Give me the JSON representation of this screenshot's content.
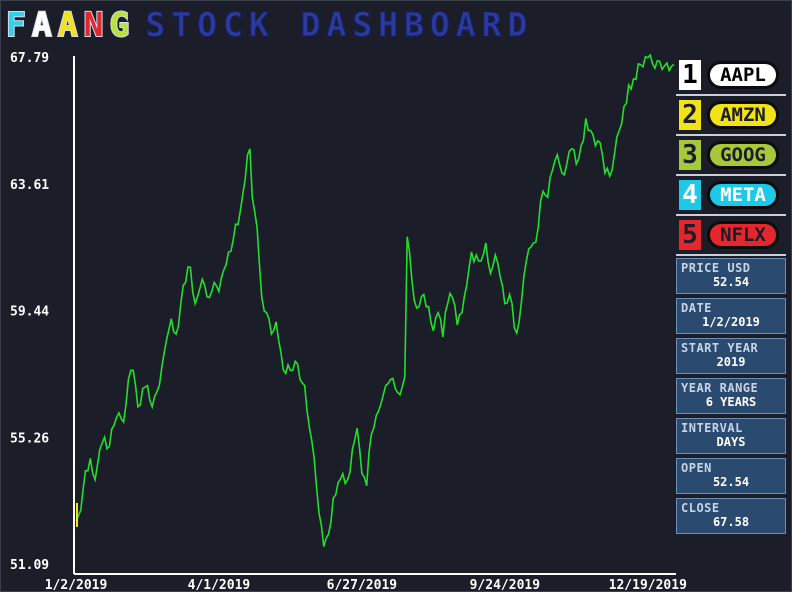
{
  "title": {
    "letters": [
      {
        "char": "F",
        "color": "#2fd3ec"
      },
      {
        "char": "A",
        "color": "#ffffff"
      },
      {
        "char": "A",
        "color": "#f2e218"
      },
      {
        "char": "N",
        "color": "#e4262e"
      },
      {
        "char": "G",
        "color": "#b6e33a"
      }
    ],
    "rest": "STOCK DASHBOARD"
  },
  "legend": [
    {
      "num": "1",
      "label": "AAPL",
      "numbg": "#ffffff",
      "numcolor": "#000000",
      "pillbg": "#ffffff",
      "pillcolor": "#000000"
    },
    {
      "num": "2",
      "label": "AMZN",
      "numbg": "#f2e218",
      "numcolor": "#1b1d29",
      "pillbg": "#f2e218",
      "pillcolor": "#1b1d29"
    },
    {
      "num": "3",
      "label": "GOOG",
      "numbg": "#a6c83a",
      "numcolor": "#1b1d29",
      "pillbg": "#a6c83a",
      "pillcolor": "#1b1d29"
    },
    {
      "num": "4",
      "label": "META",
      "numbg": "#1ec8e6",
      "numcolor": "#ffffff",
      "pillbg": "#1ec8e6",
      "pillcolor": "#ffffff"
    },
    {
      "num": "5",
      "label": "NFLX",
      "numbg": "#e4262e",
      "numcolor": "#1b1d29",
      "pillbg": "#e4262e",
      "pillcolor": "#1b1d29"
    }
  ],
  "info": [
    {
      "label": "PRICE USD",
      "value": "52.54"
    },
    {
      "label": "DATE",
      "value": "1/2/2019"
    },
    {
      "label": "START YEAR",
      "value": "2019"
    },
    {
      "label": "YEAR RANGE",
      "value": "6 YEARS"
    },
    {
      "label": "INTERVAL",
      "value": "DAYS"
    },
    {
      "label": "OPEN",
      "value": "52.54"
    },
    {
      "label": "CLOSE",
      "value": "67.58"
    }
  ],
  "colors": {
    "background": "#1b1d29",
    "line": "#22e02a",
    "axis": "#ffffff"
  },
  "chart_data": {
    "type": "line",
    "title": "",
    "xlabel": "",
    "ylabel": "",
    "ylim": [
      51.09,
      67.79
    ],
    "yticks": [
      "67.79",
      "63.61",
      "59.44",
      "55.26",
      "51.09"
    ],
    "ytick_values": [
      67.79,
      63.61,
      59.44,
      55.26,
      51.09
    ],
    "xticks": [
      "1/2/2019",
      "4/1/2019",
      "6/27/2019",
      "9/24/2019",
      "12/19/2019"
    ],
    "xtick_index": [
      0,
      60,
      120,
      180,
      240
    ],
    "n_points": 252,
    "grid": false,
    "series": [
      {
        "name": "AAPL",
        "anchors": [
          [
            0,
            52.54
          ],
          [
            2,
            52.9
          ],
          [
            4,
            54.2
          ],
          [
            6,
            54.6
          ],
          [
            8,
            53.9
          ],
          [
            10,
            54.9
          ],
          [
            12,
            55.3
          ],
          [
            14,
            55.0
          ],
          [
            16,
            55.7
          ],
          [
            18,
            56.1
          ],
          [
            20,
            55.8
          ],
          [
            22,
            57.2
          ],
          [
            24,
            57.5
          ],
          [
            26,
            56.3
          ],
          [
            28,
            56.9
          ],
          [
            30,
            57.0
          ],
          [
            32,
            56.3
          ],
          [
            34,
            56.8
          ],
          [
            36,
            57.6
          ],
          [
            38,
            58.5
          ],
          [
            40,
            59.2
          ],
          [
            42,
            58.7
          ],
          [
            44,
            59.7
          ],
          [
            46,
            60.4
          ],
          [
            48,
            60.9
          ],
          [
            50,
            59.7
          ],
          [
            52,
            60.2
          ],
          [
            54,
            60.3
          ],
          [
            56,
            59.9
          ],
          [
            58,
            60.4
          ],
          [
            60,
            60.1
          ],
          [
            62,
            60.8
          ],
          [
            64,
            61.4
          ],
          [
            66,
            61.8
          ],
          [
            68,
            62.3
          ],
          [
            70,
            63.3
          ],
          [
            72,
            64.6
          ],
          [
            73,
            64.8
          ],
          [
            74,
            63.2
          ],
          [
            76,
            62.2
          ],
          [
            78,
            59.9
          ],
          [
            80,
            59.4
          ],
          [
            82,
            58.7
          ],
          [
            84,
            59.1
          ],
          [
            86,
            58.1
          ],
          [
            88,
            57.4
          ],
          [
            90,
            57.5
          ],
          [
            92,
            57.8
          ],
          [
            94,
            57.2
          ],
          [
            96,
            57.0
          ],
          [
            98,
            55.6
          ],
          [
            100,
            54.6
          ],
          [
            102,
            52.8
          ],
          [
            104,
            51.7
          ],
          [
            106,
            52.1
          ],
          [
            108,
            53.3
          ],
          [
            110,
            53.8
          ],
          [
            112,
            54.1
          ],
          [
            114,
            53.9
          ],
          [
            116,
            54.9
          ],
          [
            118,
            55.6
          ],
          [
            120,
            54.1
          ],
          [
            122,
            53.7
          ],
          [
            124,
            55.4
          ],
          [
            126,
            56.0
          ],
          [
            128,
            56.4
          ],
          [
            130,
            57.0
          ],
          [
            132,
            57.2
          ],
          [
            134,
            56.9
          ],
          [
            136,
            56.7
          ],
          [
            138,
            57.3
          ],
          [
            139,
            61.9
          ],
          [
            140,
            61.4
          ],
          [
            142,
            59.8
          ],
          [
            144,
            59.6
          ],
          [
            146,
            60.0
          ],
          [
            148,
            59.6
          ],
          [
            150,
            58.8
          ],
          [
            152,
            59.4
          ],
          [
            154,
            58.6
          ],
          [
            156,
            59.7
          ],
          [
            158,
            59.9
          ],
          [
            160,
            59.0
          ],
          [
            162,
            59.4
          ],
          [
            164,
            60.3
          ],
          [
            166,
            61.4
          ],
          [
            168,
            61.3
          ],
          [
            170,
            61.1
          ],
          [
            172,
            61.7
          ],
          [
            174,
            60.7
          ],
          [
            176,
            61.3
          ],
          [
            178,
            60.6
          ],
          [
            180,
            59.7
          ],
          [
            182,
            60.0
          ],
          [
            184,
            58.9
          ],
          [
            186,
            59.1
          ],
          [
            188,
            60.6
          ],
          [
            190,
            61.5
          ],
          [
            192,
            61.7
          ],
          [
            194,
            62.2
          ],
          [
            196,
            63.4
          ],
          [
            198,
            63.2
          ],
          [
            200,
            64.1
          ],
          [
            202,
            64.6
          ],
          [
            204,
            64.0
          ],
          [
            206,
            64.3
          ],
          [
            208,
            64.8
          ],
          [
            210,
            64.3
          ],
          [
            212,
            64.9
          ],
          [
            214,
            65.8
          ],
          [
            216,
            65.4
          ],
          [
            218,
            64.9
          ],
          [
            220,
            65.0
          ],
          [
            222,
            64.0
          ],
          [
            224,
            63.9
          ],
          [
            226,
            64.6
          ],
          [
            228,
            65.4
          ],
          [
            230,
            66.2
          ],
          [
            232,
            66.9
          ],
          [
            234,
            67.1
          ],
          [
            236,
            67.6
          ],
          [
            238,
            67.5
          ],
          [
            240,
            67.8
          ],
          [
            242,
            67.6
          ],
          [
            244,
            67.7
          ],
          [
            251,
            67.58
          ]
        ]
      }
    ]
  }
}
